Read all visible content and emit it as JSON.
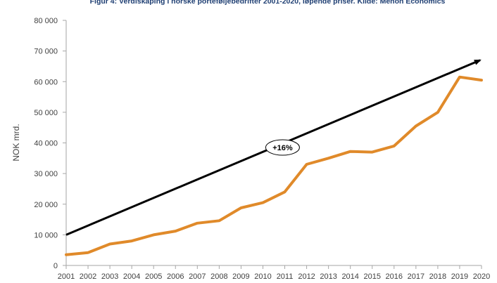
{
  "chart_data": {
    "type": "line",
    "title": "Figur 4: Verdiskaping i norske porteføljebedrifter 2001-2020, løpende priser.   Kilde: Menon Economics",
    "xlabel": "",
    "ylabel": "NOK mrd.",
    "ylim": [
      0,
      80000
    ],
    "yticks": [
      0,
      10000,
      20000,
      30000,
      40000,
      50000,
      60000,
      70000,
      80000
    ],
    "ytick_labels": [
      "0",
      "10 000",
      "20 000",
      "30 000",
      "40 000",
      "50 000",
      "60 000",
      "70 000",
      "80 000"
    ],
    "categories": [
      "2001",
      "2002",
      "2003",
      "2004",
      "2005",
      "2006",
      "2007",
      "2008",
      "2009",
      "2010",
      "2011",
      "2012",
      "2013",
      "2014",
      "2015",
      "2016",
      "2017",
      "2018",
      "2019",
      "2020"
    ],
    "series": [
      {
        "name": "Verdiskaping",
        "color": "#e08a2a",
        "values": [
          3500,
          4200,
          7000,
          8000,
          10000,
          11200,
          13800,
          14600,
          18800,
          20500,
          24000,
          33000,
          35000,
          37200,
          37000,
          39000,
          45500,
          50000,
          61500,
          60500
        ]
      }
    ],
    "trend_arrow": {
      "start": {
        "x": "2001",
        "y": 10000
      },
      "end": {
        "x": "2020",
        "y": 67000
      },
      "color": "#000000"
    },
    "annotations": [
      {
        "text": "+16%",
        "x": 9.9,
        "y": 38500
      }
    ],
    "grid": false,
    "axis_color": "#a6a6a6"
  }
}
